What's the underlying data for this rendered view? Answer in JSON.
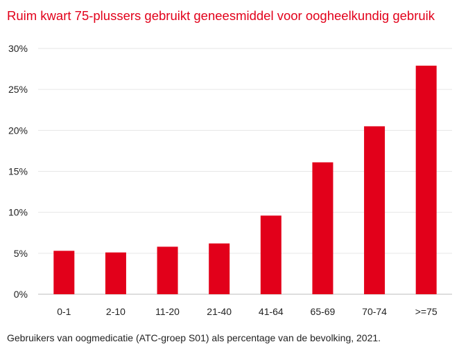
{
  "chart_data": {
    "type": "bar",
    "title": "Ruim kwart 75-plussers gebruikt geneesmiddel voor oogheelkundig gebruik",
    "categories": [
      "0-1",
      "2-10",
      "11-20",
      "21-40",
      "41-64",
      "65-69",
      "70-74",
      ">=75"
    ],
    "values": [
      5.3,
      5.1,
      5.8,
      6.2,
      9.6,
      16.1,
      20.5,
      27.9
    ],
    "ylim": [
      0,
      30
    ],
    "yticks": [
      0,
      5,
      10,
      15,
      20,
      25,
      30
    ],
    "ytick_labels": [
      "0%",
      "5%",
      "10%",
      "15%",
      "20%",
      "25%",
      "30%"
    ],
    "xlabel": "",
    "ylabel": "",
    "grid": true,
    "bar_color": "#e2001a",
    "caption": "Gebruikers van oogmedicatie (ATC-groep S01) als percentage van de bevolking, 2021."
  }
}
